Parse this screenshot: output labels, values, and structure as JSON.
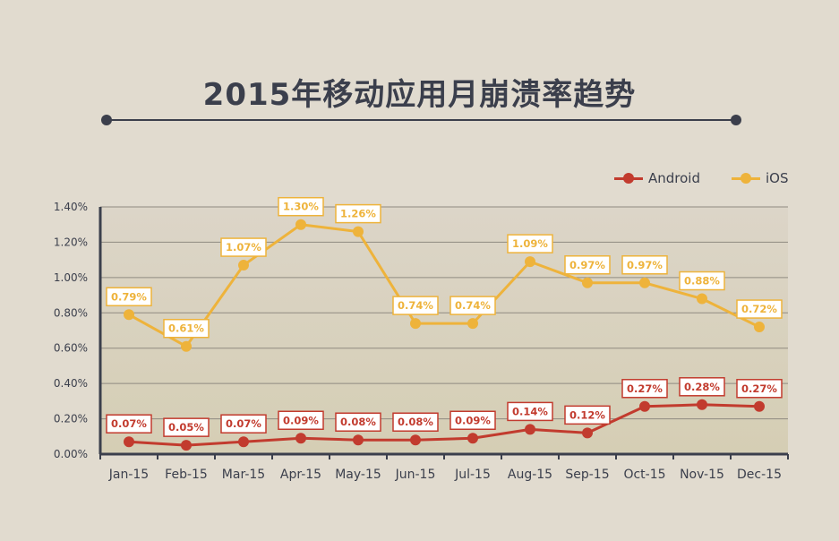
{
  "title": "2015年移动应用月崩溃率趋势",
  "colors": {
    "android": "#c23b2e",
    "ios": "#eeb33b",
    "text": "#3b3f4c",
    "grid": "#8f8a80",
    "plot_bg_top": "#dcd5c8",
    "plot_bg_bottom": "#d5ceb4"
  },
  "chart_data": {
    "type": "line",
    "title": "2015年移动应用月崩溃率趋势",
    "categories": [
      "Jan-15",
      "Feb-15",
      "Mar-15",
      "Apr-15",
      "May-15",
      "Jun-15",
      "Jul-15",
      "Aug-15",
      "Sep-15",
      "Oct-15",
      "Nov-15",
      "Dec-15"
    ],
    "series": [
      {
        "name": "Android",
        "values": [
          0.07,
          0.05,
          0.07,
          0.09,
          0.08,
          0.08,
          0.09,
          0.14,
          0.12,
          0.27,
          0.28,
          0.27
        ],
        "labels": [
          "0.07%",
          "0.05%",
          "0.07%",
          "0.09%",
          "0.08%",
          "0.08%",
          "0.09%",
          "0.14%",
          "0.12%",
          "0.27%",
          "0.28%",
          "0.27%"
        ]
      },
      {
        "name": "iOS",
        "values": [
          0.79,
          0.61,
          1.07,
          1.3,
          1.26,
          0.74,
          0.74,
          1.09,
          0.97,
          0.97,
          0.88,
          0.72
        ],
        "labels": [
          "0.79%",
          "0.61%",
          "1.07%",
          "1.30%",
          "1.26%",
          "0.74%",
          "0.74%",
          "1.09%",
          "0.97%",
          "0.97%",
          "0.88%",
          "0.72%"
        ]
      }
    ],
    "yticks": [
      "0.00%",
      "0.20%",
      "0.40%",
      "0.60%",
      "0.80%",
      "1.00%",
      "1.20%",
      "1.40%"
    ],
    "ylim": [
      0,
      1.4
    ],
    "grid": true,
    "legend_position": "top-right"
  }
}
